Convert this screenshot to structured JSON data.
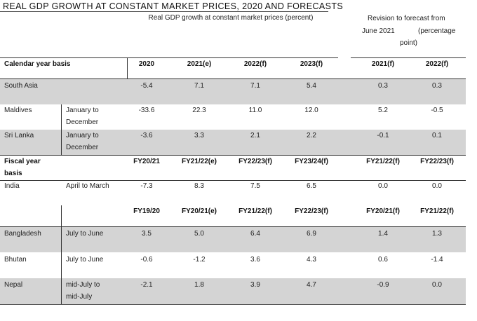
{
  "title": "REAL GDP GROWTH AT CONSTANT MARKET PRICES, 2020 AND FORECASTS",
  "header": {
    "main_group": "Real GDP growth at constant market prices (percent)",
    "revision_group_line1": "Revision to forecast from",
    "revision_group_line2a": "June 2021",
    "revision_group_line2b": "(percentage",
    "revision_group_line3": "point)"
  },
  "calendar": {
    "label": "Calendar year basis",
    "cols": [
      "2020",
      "2021(e)",
      "2022(f)",
      "2023(f)",
      "2021(f)",
      "2022(f)"
    ],
    "rows": [
      {
        "country": "South Asia",
        "period1": "",
        "period2": "",
        "values": [
          "-5.4",
          "7.1",
          "7.1",
          "5.4",
          "0.3",
          "0.3"
        ]
      },
      {
        "country": "Maldives",
        "period1": "January to",
        "period2": "December",
        "values": [
          "-33.6",
          "22.3",
          "11.0",
          "12.0",
          "5.2",
          "-0.5"
        ]
      },
      {
        "country": "Sri Lanka",
        "period1": "January to",
        "period2": "December",
        "values": [
          "-3.6",
          "3.3",
          "2.1",
          "2.2",
          "-0.1",
          "0.1"
        ]
      }
    ]
  },
  "fiscal": {
    "label1": "Fiscal year",
    "label2": "basis",
    "cols": [
      "FY20/21",
      "FY21/22(e)",
      "FY22/23(f)",
      "FY23/24(f)",
      "FY21/22(f)",
      "FY22/23(f)"
    ],
    "india": {
      "country": "India",
      "period": "April to March",
      "values": [
        "-7.3",
        "8.3",
        "7.5",
        "6.5",
        "0.0",
        "0.0"
      ]
    },
    "cols2": [
      "FY19/20",
      "FY20/21(e)",
      "FY21/22(f)",
      "FY22/23(f)",
      "FY20/21(f)",
      "FY21/22(f)"
    ],
    "rows": [
      {
        "country": "Bangladesh",
        "period1": "July to June",
        "period2": "",
        "values": [
          "3.5",
          "5.0",
          "6.4",
          "6.9",
          "1.4",
          "1.3"
        ]
      },
      {
        "country": "Bhutan",
        "period1": "July to June",
        "period2": "",
        "values": [
          "-0.6",
          "-1.2",
          "3.6",
          "4.3",
          "0.6",
          "-1.4"
        ]
      },
      {
        "country": "Nepal",
        "period1": "mid-July to",
        "period2": "mid-July",
        "values": [
          "-2.1",
          "1.8",
          "3.9",
          "4.7",
          "-0.9",
          "0.0"
        ]
      }
    ]
  }
}
